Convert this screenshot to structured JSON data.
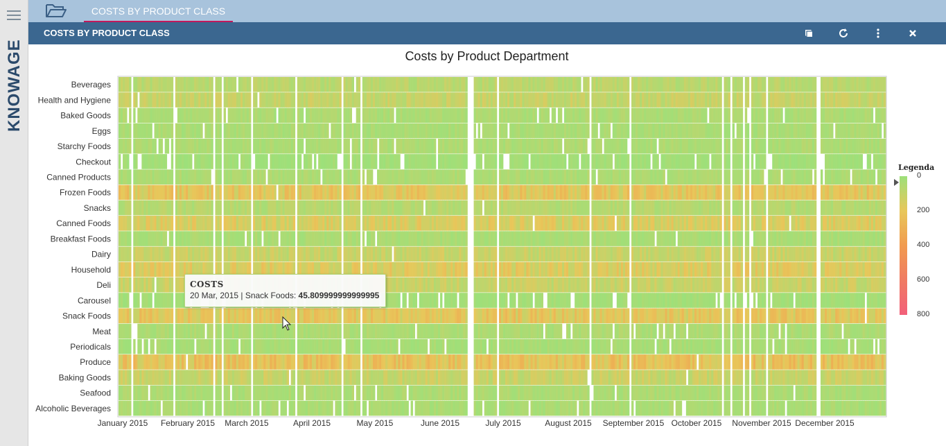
{
  "app": {
    "logo_text": "KNOWAGE"
  },
  "tabbar": {
    "tab_label": "COSTS BY PRODUCT CLASS"
  },
  "header": {
    "title": "COSTS BY PRODUCT CLASS"
  },
  "chart_data": {
    "type": "heatmap",
    "title": "Costs by Product Department",
    "categories": [
      "Beverages",
      "Health and Hygiene",
      "Baked Goods",
      "Eggs",
      "Starchy Foods",
      "Checkout",
      "Canned Products",
      "Frozen Foods",
      "Snacks",
      "Canned Foods",
      "Breakfast Foods",
      "Dairy",
      "Household",
      "Deli",
      "Carousel",
      "Snack Foods",
      "Meat",
      "Periodicals",
      "Produce",
      "Baking Goods",
      "Seafood",
      "Alcoholic Beverages"
    ],
    "row_level": [
      0.22,
      0.3,
      0.12,
      0.1,
      0.12,
      0.04,
      0.12,
      0.55,
      0.18,
      0.45,
      0.1,
      0.32,
      0.48,
      0.32,
      0.05,
      0.55,
      0.12,
      0.08,
      0.62,
      0.32,
      0.12,
      0.1
    ],
    "x_labels": [
      "January 2015",
      "February 2015",
      "March 2015",
      "April 2015",
      "May 2015",
      "June 2015",
      "July 2015",
      "August 2015",
      "September 2015",
      "October 2015",
      "November 2015",
      "December 2015"
    ],
    "x_range": [
      "2015-01-01",
      "2015-12-31"
    ],
    "legend": {
      "title": "Legenda",
      "min": 0,
      "max": 800,
      "ticks": [
        0,
        200,
        400,
        600,
        800
      ],
      "colors": [
        "#9de07a",
        "#e8c75a",
        "#f19b4f",
        "#f07b63",
        "#f2607a"
      ]
    },
    "tooltip": {
      "title": "COSTS",
      "text": "20 Mar, 2015 | Snack Foods: ",
      "value": "45.809999999999995"
    }
  }
}
